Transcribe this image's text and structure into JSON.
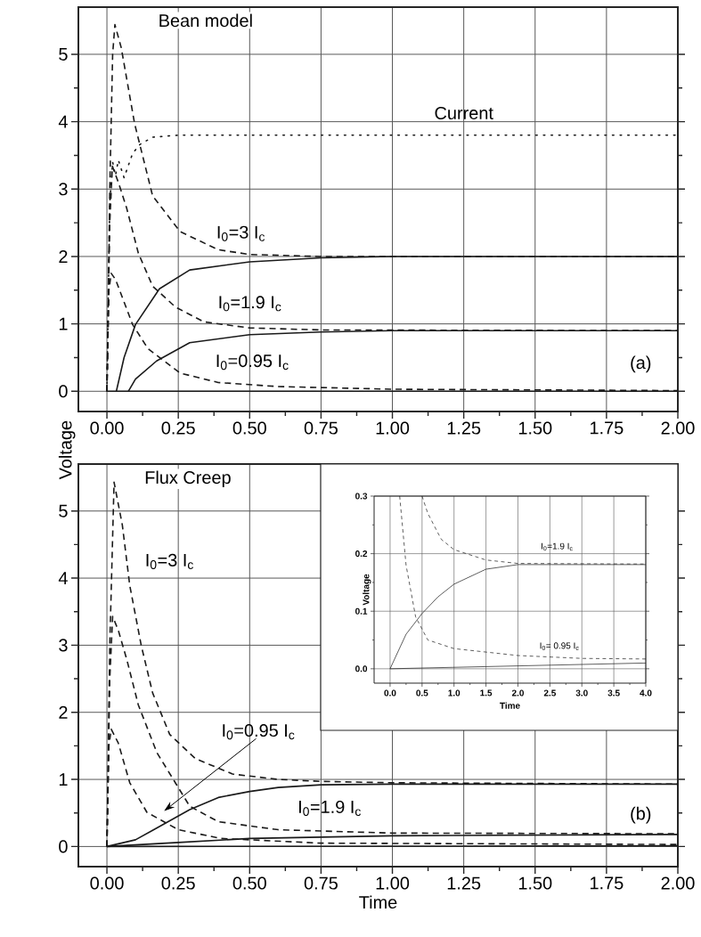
{
  "chart_data": [
    {
      "type": "line",
      "title": "Bean model",
      "ylabel": "Voltage",
      "xlim": [
        -0.1,
        2.0
      ],
      "ylim": [
        -0.3,
        5.7
      ],
      "grid": true,
      "xticks": [
        {
          "value": 0,
          "label": "0.00"
        },
        {
          "value": 0.25,
          "label": "0.25"
        },
        {
          "value": 0.5,
          "label": "0.50"
        },
        {
          "value": 0.75,
          "label": "0.75"
        },
        {
          "value": 1.0,
          "label": "1.00"
        },
        {
          "value": 1.25,
          "label": "1.25"
        },
        {
          "value": 1.5,
          "label": "1.50"
        },
        {
          "value": 1.75,
          "label": "1.75"
        },
        {
          "value": 2.0,
          "label": "2.00"
        }
      ],
      "yticks": [
        0,
        1,
        2,
        3,
        4,
        5
      ],
      "series": [
        {
          "color": "#1a1a1a",
          "line_style": "dotted",
          "x": [
            0,
            0.005,
            0.01,
            0.02,
            0.03,
            0.04,
            0.06,
            0.09,
            0.115,
            0.16,
            0.25,
            2.0
          ],
          "values": [
            0,
            1.5,
            2.8,
            3.4,
            3.2,
            3.43,
            3.17,
            3.53,
            3.66,
            3.77,
            3.8,
            3.8
          ]
        },
        {
          "color": "#1a1a1a",
          "line_style": "dashed",
          "x": [
            0,
            0.01,
            0.02,
            0.028,
            0.05,
            0.097,
            0.16,
            0.256,
            0.39,
            0.5,
            0.75,
            1.0,
            2.0
          ],
          "values": [
            0,
            3.0,
            5.0,
            5.44,
            5.1,
            3.97,
            2.9,
            2.37,
            2.1,
            2.03,
            2.0,
            2.0,
            2.0
          ]
        },
        {
          "color": "#1a1a1a",
          "line_style": "solid",
          "x": [
            0.033,
            0.06,
            0.1,
            0.184,
            0.29,
            0.5,
            0.75,
            1.0,
            2.0
          ],
          "values": [
            0,
            0.5,
            0.99,
            1.52,
            1.8,
            1.92,
            1.98,
            2.0,
            2.0
          ]
        },
        {
          "color": "#1a1a1a",
          "line_style": "dashed",
          "x": [
            0,
            0.01,
            0.019,
            0.04,
            0.069,
            0.11,
            0.16,
            0.24,
            0.34,
            0.5,
            0.75,
            2.0
          ],
          "values": [
            0,
            2.5,
            3.34,
            3.1,
            2.72,
            2.05,
            1.56,
            1.25,
            1.03,
            0.94,
            0.91,
            0.9
          ]
        },
        {
          "color": "#1a1a1a",
          "line_style": "solid",
          "x": [
            0.075,
            0.1,
            0.174,
            0.29,
            0.5,
            0.75,
            1.0,
            2.0
          ],
          "values": [
            0,
            0.18,
            0.45,
            0.72,
            0.84,
            0.88,
            0.9,
            0.9
          ]
        },
        {
          "color": "#1a1a1a",
          "line_style": "dashed",
          "x": [
            0,
            0.007,
            0.015,
            0.03,
            0.09,
            0.144,
            0.256,
            0.39,
            0.6,
            1.0,
            2.0
          ],
          "values": [
            0,
            1.5,
            1.75,
            1.66,
            0.99,
            0.63,
            0.27,
            0.13,
            0.07,
            0.03,
            0.01
          ]
        },
        {
          "color": "#1a1a1a",
          "line_style": "solid",
          "x": [
            0,
            2.0
          ],
          "values": [
            0,
            0
          ]
        }
      ],
      "annotations": [
        "Current",
        "I$_{0}$=3 I$_{c}$",
        "I$_{0}$=1.9 I$_{c}$",
        "I$_{0}$=0.95 I$_{c}$",
        "(a)"
      ]
    },
    {
      "type": "line",
      "title": "Flux Creep",
      "xlabel": "Time",
      "xlim": [
        -0.1,
        2.0
      ],
      "ylim": [
        -0.3,
        5.7
      ],
      "grid": true,
      "xticks": [
        {
          "value": 0,
          "label": "0.00"
        },
        {
          "value": 0.25,
          "label": "0.25"
        },
        {
          "value": 0.5,
          "label": "0.50"
        },
        {
          "value": 0.75,
          "label": "0.75"
        },
        {
          "value": 1.0,
          "label": "1.00"
        },
        {
          "value": 1.25,
          "label": "1.25"
        },
        {
          "value": 1.5,
          "label": "1.50"
        },
        {
          "value": 1.75,
          "label": "1.75"
        },
        {
          "value": 2.0,
          "label": "2.00"
        }
      ],
      "yticks": [
        0,
        1,
        2,
        3,
        4,
        5
      ],
      "series": [
        {
          "color": "#1a1a1a",
          "line_style": "dashed",
          "x": [
            0,
            0.01,
            0.025,
            0.054,
            0.08,
            0.12,
            0.16,
            0.22,
            0.31,
            0.44,
            0.6,
            0.75,
            1.0,
            2.0
          ],
          "values": [
            0,
            3.0,
            5.43,
            4.79,
            3.89,
            3.0,
            2.29,
            1.67,
            1.31,
            1.08,
            1.0,
            0.97,
            0.95,
            0.93
          ]
        },
        {
          "color": "#1a1a1a",
          "line_style": "dashed",
          "x": [
            0,
            0.01,
            0.02,
            0.04,
            0.07,
            0.11,
            0.175,
            0.29,
            0.39,
            0.6,
            1.0,
            2.0
          ],
          "values": [
            0,
            2.5,
            3.43,
            3.22,
            2.78,
            2.11,
            1.4,
            0.6,
            0.37,
            0.25,
            0.2,
            0.19
          ]
        },
        {
          "color": "#1a1a1a",
          "line_style": "dashed",
          "x": [
            0,
            0.007,
            0.015,
            0.04,
            0.08,
            0.14,
            0.25,
            0.4,
            0.75,
            2.0
          ],
          "values": [
            0,
            1.5,
            1.75,
            1.54,
            0.95,
            0.51,
            0.25,
            0.12,
            0.05,
            0.03
          ]
        },
        {
          "color": "#1a1a1a",
          "line_style": "solid",
          "x": [
            0,
            0.1,
            0.16,
            0.29,
            0.39,
            0.5,
            0.6,
            0.75,
            1.0,
            2.0
          ],
          "values": [
            0,
            0.1,
            0.24,
            0.55,
            0.73,
            0.82,
            0.88,
            0.92,
            0.93,
            0.93
          ]
        },
        {
          "color": "#1a1a1a",
          "line_style": "solid",
          "x": [
            0,
            0.25,
            0.5,
            1.0,
            2.0
          ],
          "values": [
            0,
            0.06,
            0.12,
            0.16,
            0.18
          ]
        },
        {
          "color": "#1a1a1a",
          "line_style": "solid",
          "x": [
            0,
            2.0
          ],
          "values": [
            0,
            0.01
          ]
        }
      ],
      "annotations": [
        "I$_{0}$=3 I$_{c}$",
        "I$_{0}$=0.95 I$_{c}$",
        "I$_{0}$=1.9 I$_{c}$",
        "(b)"
      ]
    },
    {
      "type": "line",
      "xlabel": "Time",
      "ylabel": "Voltage",
      "xlim": [
        -0.25,
        4.0
      ],
      "ylim": [
        -0.025,
        0.3
      ],
      "grid": true,
      "xticks": [
        {
          "value": 0,
          "label": "0.0"
        },
        {
          "value": 0.5,
          "label": "0.5"
        },
        {
          "value": 1.0,
          "label": "1.0"
        },
        {
          "value": 1.5,
          "label": "1.5"
        },
        {
          "value": 2.0,
          "label": "2.0"
        },
        {
          "value": 2.5,
          "label": "2.5"
        },
        {
          "value": 3.0,
          "label": "3.0"
        },
        {
          "value": 3.5,
          "label": "3.5"
        },
        {
          "value": 4.0,
          "label": "4.0"
        }
      ],
      "yticks": [
        {
          "value": 0,
          "label": "0.0"
        },
        {
          "value": 0.1,
          "label": "0.1"
        },
        {
          "value": 0.2,
          "label": "0.2"
        },
        {
          "value": 0.3,
          "label": "0.3"
        }
      ],
      "series": [
        {
          "color": "#1a1a1a",
          "line_style": "solid",
          "x": [
            0,
            0.25,
            0.5,
            0.75,
            1.0,
            1.5,
            2.0,
            4.0
          ],
          "values": [
            0,
            0.06,
            0.096,
            0.125,
            0.147,
            0.173,
            0.181,
            0.181
          ]
        },
        {
          "color": "#1a1a1a",
          "line_style": "dashed",
          "x": [
            0.5,
            0.59,
            0.8,
            1.0,
            1.5,
            2.0,
            4.0
          ],
          "values": [
            0.3,
            0.27,
            0.225,
            0.207,
            0.189,
            0.183,
            0.182
          ]
        },
        {
          "color": "#1a1a1a",
          "line_style": "dashed",
          "x": [
            0.15,
            0.25,
            0.4,
            0.59,
            1.0,
            2.0,
            3.0,
            4.0
          ],
          "values": [
            0.3,
            0.18,
            0.09,
            0.05,
            0.035,
            0.023,
            0.018,
            0.017
          ]
        },
        {
          "color": "#1a1a1a",
          "line_style": "solid",
          "x": [
            0,
            4.0
          ],
          "values": [
            0,
            0.01
          ]
        }
      ],
      "annotations": [
        "I$_{0}$=1.9 I$_{c}$",
        "I$_{0}$= 0.95 I$_{c}$"
      ]
    }
  ]
}
